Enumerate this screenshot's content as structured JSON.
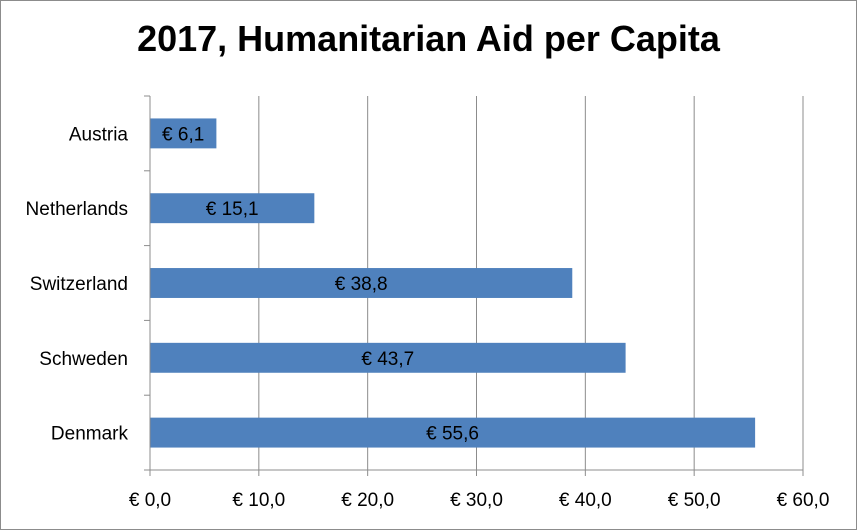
{
  "chart_data": {
    "type": "bar",
    "orientation": "horizontal",
    "title": "2017, Humanitarian Aid per Capita",
    "categories": [
      "Austria",
      "Netherlands",
      "Switzerland",
      "Schweden",
      "Denmark"
    ],
    "values": [
      6.1,
      15.1,
      38.8,
      43.7,
      55.6
    ],
    "data_labels": [
      "€ 6,1",
      "€ 15,1",
      "€ 38,8",
      "€ 43,7",
      "€ 55,6"
    ],
    "xlim": [
      0,
      60
    ],
    "x_ticks": [
      0,
      10,
      20,
      30,
      40,
      50,
      60
    ],
    "x_tick_labels": [
      "€ 0,0",
      "€ 10,0",
      "€ 20,0",
      "€ 30,0",
      "€ 40,0",
      "€ 50,0",
      "€ 60,0"
    ],
    "xlabel": "",
    "ylabel": "",
    "grid": true,
    "legend": "none",
    "bar_color": "#4f81bd"
  }
}
